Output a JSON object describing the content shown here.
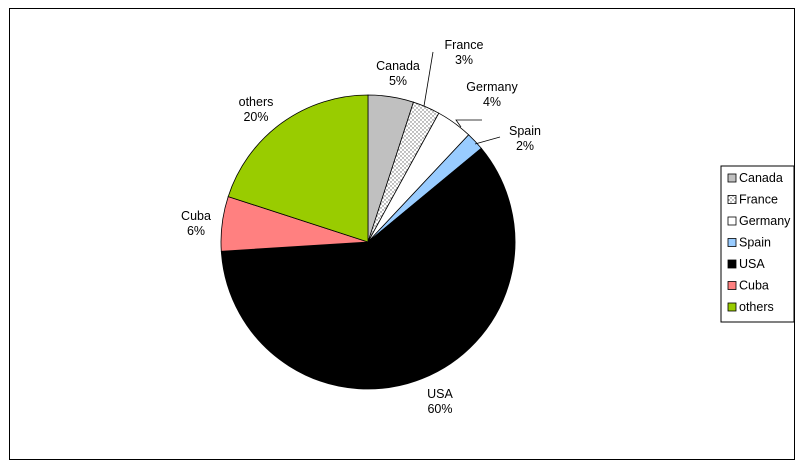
{
  "chart_data": {
    "type": "pie",
    "slices": [
      {
        "name": "Canada",
        "value": 5,
        "label": "5%",
        "color": "#c0c0c0",
        "pattern": "none"
      },
      {
        "name": "France",
        "value": 3,
        "label": "3%",
        "color": "#ffffff",
        "pattern": "dots"
      },
      {
        "name": "Germany",
        "value": 4,
        "label": "4%",
        "color": "#ffffff",
        "pattern": "none"
      },
      {
        "name": "Spain",
        "value": 2,
        "label": "2%",
        "color": "#99ccff",
        "pattern": "none"
      },
      {
        "name": "USA",
        "value": 60,
        "label": "60%",
        "color": "#000000",
        "pattern": "none"
      },
      {
        "name": "Cuba",
        "value": 6,
        "label": "6%",
        "color": "#ff8080",
        "pattern": "none"
      },
      {
        "name": "others",
        "value": 20,
        "label": "20%",
        "color": "#99cc00",
        "pattern": "none"
      }
    ],
    "start_angle_deg": 0,
    "direction": "clockwise",
    "legend_position": "right",
    "label_style": "category name and percent, outside slices with leader lines for small slices"
  }
}
